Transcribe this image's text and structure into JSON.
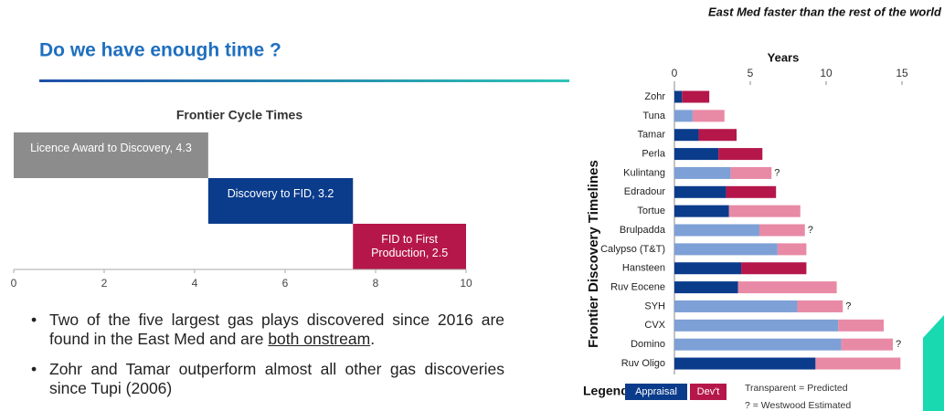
{
  "title": "Do we have enough time ?",
  "bullets": [
    [
      "Two of the five largest gas plays discovered since 2016 are found in the East Med and are ",
      "both onstream",
      "."
    ],
    [
      "Zohr and Tamar outperform almost all other gas discoveries since Tupi (2006)"
    ]
  ],
  "chart_data": [
    {
      "type": "gantt",
      "title": "Frontier Cycle Times",
      "categories": [
        "Licence Award to Discovery",
        "Discovery to FID",
        "FID to First Production"
      ],
      "values": [
        4.3,
        3.2,
        2.5
      ],
      "value_labels": [
        "Licence Award to Discovery, 4.3",
        "Discovery to FID, 3.2",
        "FID to First Production, 2.5"
      ],
      "colors": [
        "#8c8c8c",
        "#0b3c8c",
        "#b5174b"
      ],
      "xlim": [
        0,
        10
      ],
      "xticks": [
        0,
        2,
        4,
        6,
        8,
        10
      ]
    },
    {
      "type": "stacked_barh",
      "subtitle": "East Med faster than the rest of the world",
      "x_label": "Years",
      "y_label": "Frontier Discovery Timelines",
      "categories": [
        "Zohr",
        "Tuna",
        "Tamar",
        "Perla",
        "Kulintang",
        "Edradour",
        "Tortue",
        "Brulpadda",
        "Calypso (T&T)",
        "Hansteen",
        "Ruv Eocene",
        "SYH",
        "CVX",
        "Domino",
        "Ruv Oligo"
      ],
      "series": [
        {
          "name": "Appraisal",
          "color": "#0b3c8c",
          "predicted_color": "#7da0d6",
          "values": [
            0.5,
            1.2,
            1.6,
            2.9,
            3.7,
            3.4,
            3.6,
            5.6,
            6.8,
            4.4,
            4.2,
            8.1,
            10.8,
            11.0,
            9.3
          ],
          "predicted": [
            false,
            true,
            false,
            false,
            true,
            false,
            false,
            true,
            true,
            false,
            false,
            true,
            true,
            true,
            false
          ]
        },
        {
          "name": "Dev't",
          "color": "#b5174b",
          "predicted_color": "#e88aa6",
          "values": [
            1.8,
            2.1,
            2.5,
            2.9,
            2.7,
            3.3,
            4.7,
            3.0,
            1.9,
            4.3,
            6.5,
            3.0,
            3.0,
            3.4,
            5.6
          ],
          "predicted": [
            false,
            true,
            false,
            false,
            true,
            false,
            true,
            true,
            true,
            false,
            true,
            true,
            true,
            true,
            true
          ]
        }
      ],
      "marker_labels": [
        null,
        null,
        null,
        null,
        "?",
        null,
        null,
        "?",
        null,
        null,
        null,
        "?",
        null,
        "?",
        null
      ],
      "legend_title": "Legend",
      "legend_notes": [
        "Transparent = Predicted",
        "? = Westwood Estimated"
      ],
      "xlim": [
        0,
        15
      ],
      "xticks": [
        0,
        5,
        10,
        15
      ]
    }
  ]
}
